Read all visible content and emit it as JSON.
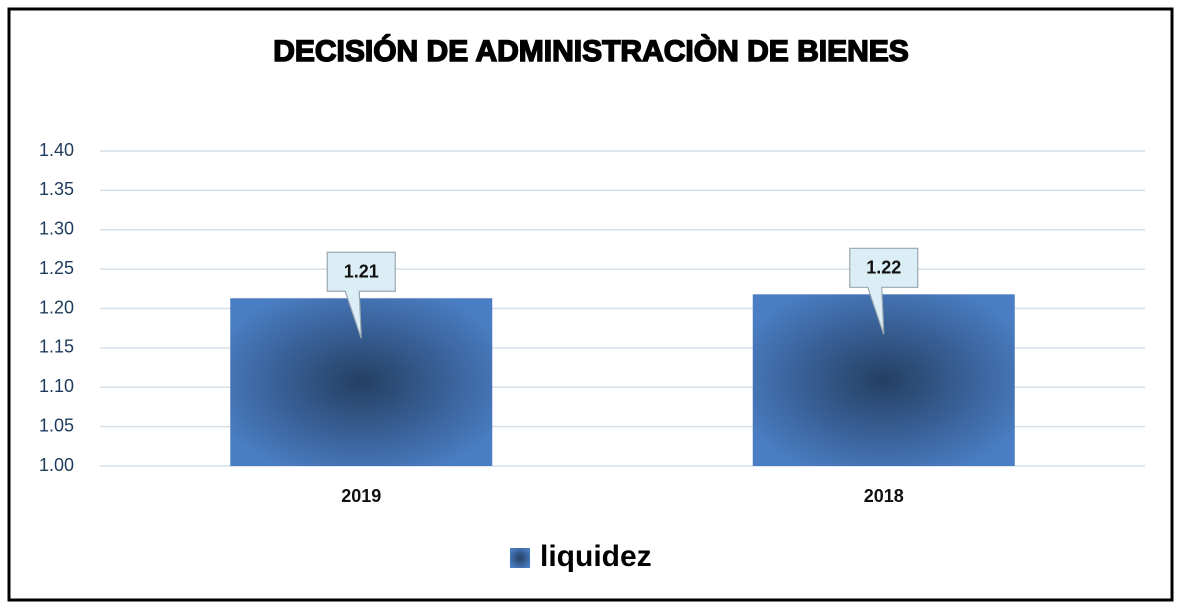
{
  "chart_data": {
    "type": "bar",
    "title": "DECISIÓN DE ADMINISTRACIÒN DE BIENES",
    "categories": [
      "2019",
      "2018"
    ],
    "series": [
      {
        "name": "liquidez",
        "color": "#4472c4",
        "values": [
          1.213,
          1.218
        ],
        "value_labels": [
          "1.21",
          "1.22"
        ]
      }
    ],
    "ylim": [
      1.0,
      1.4
    ],
    "yticks": [
      {
        "value": 1.0,
        "label": "1.00"
      },
      {
        "value": 1.05,
        "label": "1.05"
      },
      {
        "value": 1.1,
        "label": "1.10"
      },
      {
        "value": 1.15,
        "label": "1.15"
      },
      {
        "value": 1.2,
        "label": "1.20"
      },
      {
        "value": 1.25,
        "label": "1.25"
      },
      {
        "value": 1.3,
        "label": "1.30"
      },
      {
        "value": 1.35,
        "label": "1.35"
      },
      {
        "value": 1.4,
        "label": "1.40"
      }
    ],
    "grid": true,
    "legend": "bottom"
  }
}
